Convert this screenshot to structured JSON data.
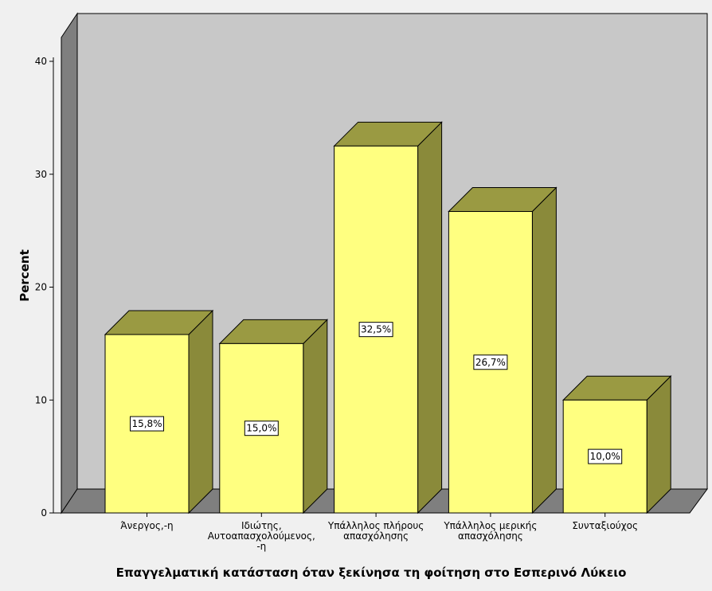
{
  "chart_data": {
    "type": "bar",
    "ylabel": "Percent",
    "xlabel": "Επαγγελματική κατάσταση όταν ξεκίνησα τη φοίτηση στο Εσπερινό Λύκειο",
    "ylim": [
      0,
      40
    ],
    "yticks": [
      0,
      10,
      20,
      30,
      40
    ],
    "categories": [
      [
        "Άνεργος,-η"
      ],
      [
        "Ιδιώτης,",
        "Αυτοαπασχολούμενος,",
        "-η"
      ],
      [
        "Υπάλληλος πλήρους",
        "απασχόλησης"
      ],
      [
        "Υπάλληλος μερικής",
        "απασχόλησης"
      ],
      [
        "Συνταξιούχος"
      ]
    ],
    "values": [
      15.8,
      15.0,
      32.5,
      26.7,
      10.0
    ],
    "data_labels": [
      "15,8%",
      "15,0%",
      "32,5%",
      "26,7%",
      "10,0%"
    ],
    "three_d": true,
    "grid": false,
    "colors": {
      "background": "#f0f0f0",
      "back_wall": "#c8c8c8",
      "side_wall": "#7f7f7f",
      "floor": "#7f7f7f",
      "bar_front": "#ffff80",
      "bar_top": "#9a9a42",
      "bar_side": "#8a8a3a",
      "outline": "#000000"
    }
  }
}
